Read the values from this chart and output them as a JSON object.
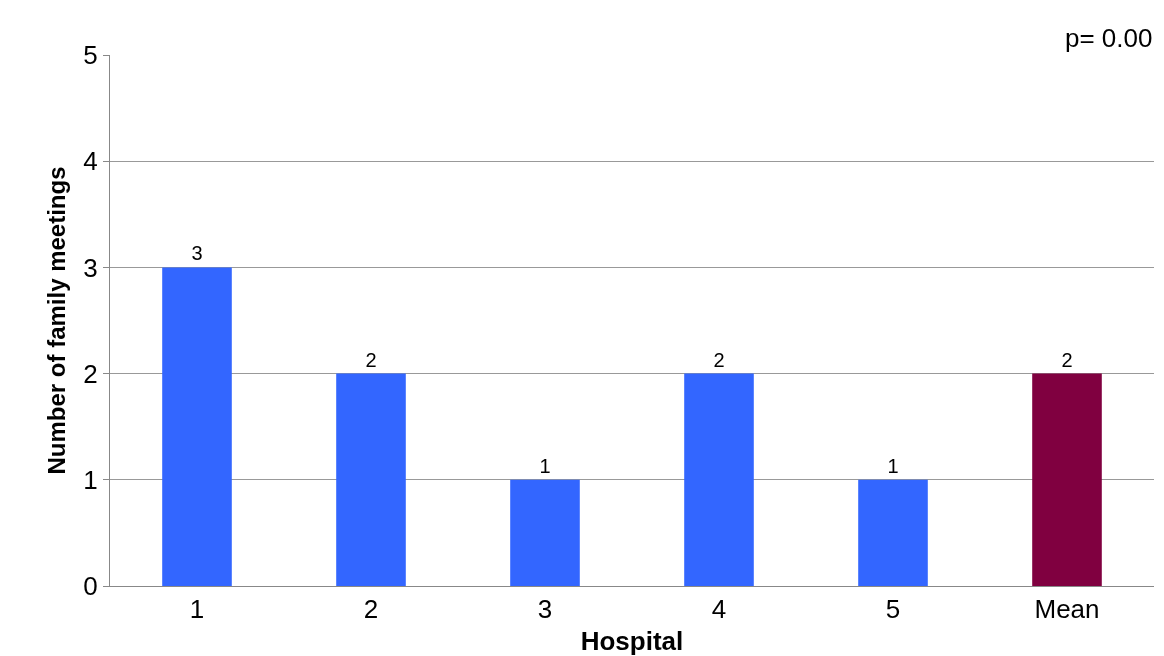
{
  "chart_data": {
    "type": "bar",
    "xlabel": "Hospital",
    "ylabel": "Number of family meetings",
    "categories": [
      "1",
      "2",
      "3",
      "4",
      "5",
      "Mean"
    ],
    "values": [
      3,
      2,
      1,
      2,
      1,
      2
    ],
    "colors": [
      "#3366ff",
      "#3366ff",
      "#3366ff",
      "#3366ff",
      "#3366ff",
      "#800040"
    ],
    "ylim": [
      0,
      5
    ],
    "yticks": [
      0,
      1,
      2,
      3,
      4,
      5
    ],
    "grid": "y",
    "data_labels": true,
    "annotations": [
      "p= 0.00"
    ]
  }
}
